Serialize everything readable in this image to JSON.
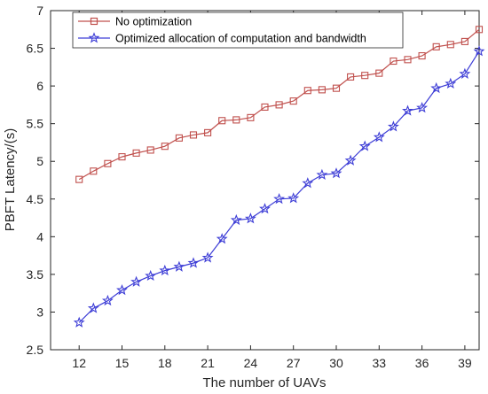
{
  "chart_data": {
    "type": "line",
    "xlabel": "The number of UAVs",
    "ylabel": "PBFT  Latency/(s)",
    "xlim": [
      10,
      40
    ],
    "ylim": [
      2.5,
      7
    ],
    "xticks": [
      12,
      15,
      18,
      21,
      24,
      27,
      30,
      33,
      36,
      39
    ],
    "yticks": [
      2.5,
      3,
      3.5,
      4,
      4.5,
      5,
      5.5,
      6,
      6.5,
      7
    ],
    "ytick_labels": [
      "2.5",
      "3",
      "3.5",
      "4",
      "4.5",
      "5",
      "5.5",
      "6",
      "6.5",
      "7"
    ],
    "grid": false,
    "legend_position": "top-left",
    "x": [
      12,
      13,
      14,
      15,
      16,
      17,
      18,
      19,
      20,
      21,
      22,
      23,
      24,
      25,
      26,
      27,
      28,
      29,
      30,
      31,
      32,
      33,
      34,
      35,
      36,
      37,
      38,
      39,
      40
    ],
    "series": [
      {
        "name": "No optimization",
        "color": "#c0504d",
        "marker": "square",
        "values": [
          4.76,
          4.87,
          4.97,
          5.06,
          5.11,
          5.15,
          5.2,
          5.31,
          5.35,
          5.38,
          5.54,
          5.55,
          5.58,
          5.72,
          5.75,
          5.8,
          5.94,
          5.95,
          5.97,
          6.12,
          6.14,
          6.17,
          6.33,
          6.35,
          6.4,
          6.52,
          6.55,
          6.59,
          6.75
        ]
      },
      {
        "name": "Optimized allocation of computation and bandwidth",
        "color": "#3d3dd6",
        "marker": "star",
        "values": [
          2.86,
          3.05,
          3.15,
          3.29,
          3.4,
          3.48,
          3.55,
          3.6,
          3.65,
          3.72,
          3.97,
          4.22,
          4.24,
          4.37,
          4.5,
          4.51,
          4.71,
          4.82,
          4.84,
          5.01,
          5.2,
          5.32,
          5.46,
          5.67,
          5.71,
          5.97,
          6.03,
          6.16,
          6.46
        ]
      }
    ]
  }
}
